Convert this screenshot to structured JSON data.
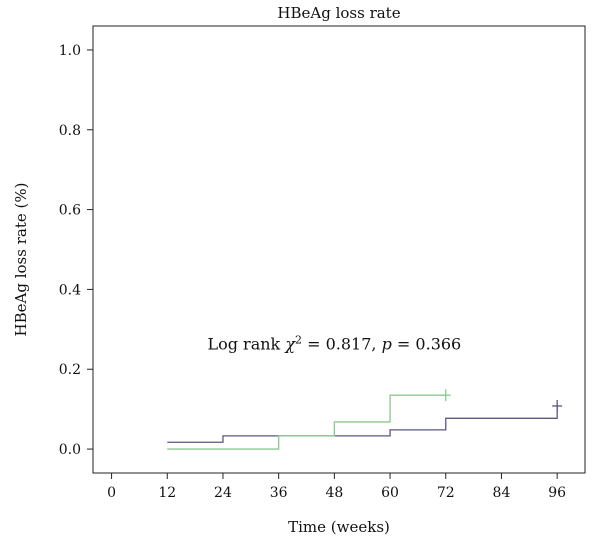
{
  "chart_data": {
    "type": "line",
    "subtype": "kaplan-meier-step",
    "title": "HBeAg loss rate",
    "xlabel": "Time (weeks)",
    "ylabel": "HBeAg loss rate (%)",
    "xlim": [
      -4,
      102
    ],
    "ylim": [
      -0.06,
      1.06
    ],
    "x_ticks": [
      0,
      12,
      24,
      36,
      48,
      60,
      72,
      84,
      96
    ],
    "y_ticks": [
      0.0,
      0.2,
      0.4,
      0.6,
      0.8,
      1.0
    ],
    "y_tick_labels": [
      "0.0",
      "0.2",
      "0.4",
      "0.6",
      "0.8",
      "1.0"
    ],
    "grid": false,
    "annotation": {
      "prefix": "Log rank ",
      "chi": "χ",
      "sup": "2",
      "mid": " = 0.817, ",
      "p": "p",
      "suffix": " = 0.366",
      "x": 48,
      "y": 0.25
    },
    "series": [
      {
        "color": "#5a5880",
        "x": [
          12,
          24,
          36,
          48,
          60,
          72,
          96
        ],
        "y": [
          0.017,
          0.033,
          0.033,
          0.033,
          0.048,
          0.077,
          0.108
        ],
        "censor": [
          {
            "x": 96,
            "y": 0.108
          }
        ]
      },
      {
        "color": "#8cc88e",
        "x": [
          12,
          24,
          36,
          48,
          60,
          72
        ],
        "y": [
          0.0,
          0.0,
          0.033,
          0.068,
          0.135,
          0.135
        ],
        "censor": [
          {
            "x": 72,
            "y": 0.135
          }
        ]
      }
    ]
  }
}
